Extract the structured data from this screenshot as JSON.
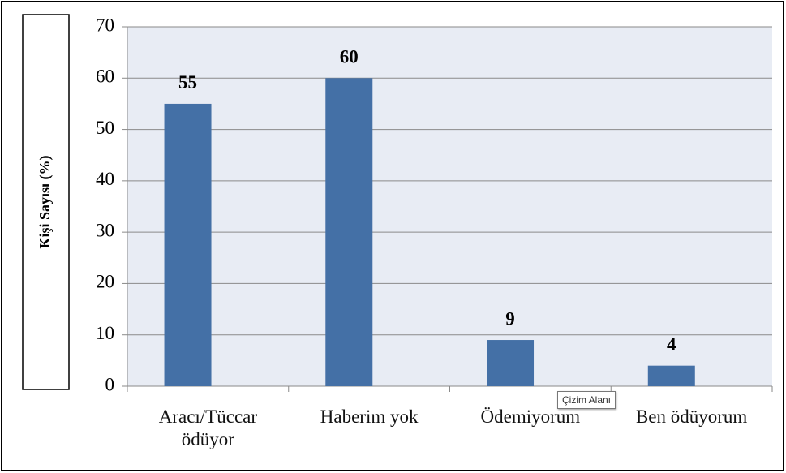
{
  "chart_data": {
    "type": "bar",
    "y_label": "Kişi Sayısı (%)",
    "categories": [
      "Aracı/Tüccar ödüyor",
      "Haberim yok",
      "Ödemiyorum",
      "Ben ödüyorum"
    ],
    "values": [
      55,
      60,
      9,
      4
    ],
    "color": "#4470a6",
    "ylim": [
      0,
      70
    ],
    "yticks": [
      0,
      10,
      20,
      30,
      40,
      50,
      60,
      70
    ],
    "grid": true,
    "tooltip": "Çizim Alanı"
  }
}
